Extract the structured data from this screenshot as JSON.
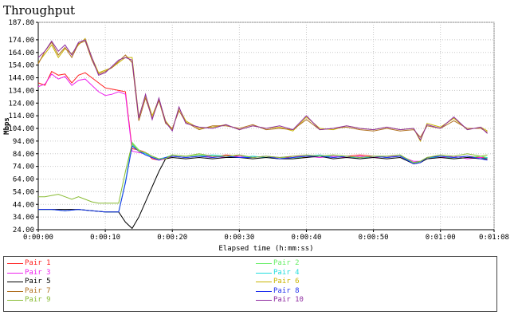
{
  "chart_data": {
    "type": "line",
    "title": "Throughput",
    "xlabel": "Elapsed time (h:mm:ss)",
    "ylabel": "Mbps",
    "xlim": [
      0,
      68
    ],
    "ylim": [
      24,
      187.8
    ],
    "grid": true,
    "legend_position": "bottom",
    "y_ticks": [
      "24.00",
      "34.00",
      "44.00",
      "54.00",
      "64.00",
      "74.00",
      "84.00",
      "94.00",
      "104.00",
      "114.00",
      "124.00",
      "134.00",
      "144.00",
      "154.00",
      "164.00",
      "174.00",
      "187.80"
    ],
    "y_tick_values": [
      24,
      34,
      44,
      54,
      64,
      74,
      84,
      94,
      104,
      114,
      124,
      134,
      144,
      154,
      164,
      174,
      187.8
    ],
    "x_ticks": [
      "0:00:00",
      "0:00:10",
      "0:00:20",
      "0:00:30",
      "0:00:40",
      "0:00:50",
      "0:01:00",
      "0:01:08"
    ],
    "x_tick_values": [
      0,
      10,
      20,
      30,
      40,
      50,
      60,
      68
    ],
    "series": [
      {
        "name": "Pair 1",
        "color": "#ff2020",
        "x": [
          0,
          1,
          2,
          3,
          4,
          5,
          6,
          7,
          8,
          9,
          10,
          11,
          12,
          13,
          14,
          15,
          16,
          17,
          18,
          19,
          20,
          22,
          24,
          26,
          28,
          30,
          32,
          34,
          36,
          38,
          40,
          42,
          44,
          46,
          48,
          50,
          52,
          54,
          56,
          57,
          58,
          60,
          62,
          64,
          66,
          67
        ],
        "y": [
          140,
          138,
          149,
          146,
          147,
          140,
          146,
          148,
          144,
          140,
          136,
          135,
          134,
          133,
          88,
          87,
          85,
          80,
          79,
          80,
          82,
          81,
          82,
          81,
          83,
          82,
          81,
          82,
          80,
          82,
          81,
          83,
          81,
          82,
          83,
          82,
          81,
          82,
          77,
          78,
          81,
          82,
          81,
          82,
          81,
          81
        ]
      },
      {
        "name": "Pair 2",
        "color": "#66ee66",
        "x": [
          0,
          2,
          4,
          6,
          8,
          10,
          12,
          13,
          14,
          15,
          16,
          17,
          18,
          19,
          20,
          22,
          24,
          26,
          28,
          30,
          32,
          34,
          36,
          38,
          40,
          42,
          44,
          46,
          48,
          50,
          52,
          54,
          56,
          57,
          58,
          60,
          62,
          64,
          66,
          67
        ],
        "y": [
          40,
          40,
          39,
          40,
          39,
          38,
          38,
          62,
          93,
          87,
          84,
          82,
          79,
          81,
          83,
          82,
          83,
          82,
          82,
          83,
          81,
          82,
          81,
          80,
          82,
          81,
          83,
          82,
          81,
          82,
          82,
          83,
          76,
          78,
          81,
          82,
          80,
          81,
          82,
          81
        ]
      },
      {
        "name": "Pair 3",
        "color": "#ee22ee",
        "x": [
          0,
          1,
          2,
          3,
          4,
          5,
          6,
          7,
          8,
          9,
          10,
          11,
          12,
          13,
          14,
          15,
          16,
          17,
          18,
          19,
          20,
          22,
          24,
          26,
          28,
          30,
          32,
          34,
          36,
          38,
          40,
          42,
          44,
          46,
          48,
          50,
          52,
          54,
          56,
          57,
          58,
          60,
          62,
          64,
          66,
          67
        ],
        "y": [
          137,
          139,
          147,
          143,
          145,
          138,
          142,
          143,
          138,
          133,
          130,
          131,
          133,
          131,
          86,
          85,
          84,
          81,
          79,
          80,
          82,
          81,
          82,
          82,
          81,
          82,
          81,
          82,
          81,
          82,
          82,
          81,
          82,
          81,
          82,
          81,
          82,
          82,
          78,
          78,
          80,
          81,
          82,
          80,
          81,
          80
        ]
      },
      {
        "name": "Pair 4",
        "color": "#22dddd",
        "x": [
          0,
          2,
          4,
          6,
          8,
          10,
          12,
          13,
          14,
          15,
          16,
          17,
          18,
          19,
          20,
          22,
          24,
          26,
          28,
          30,
          32,
          34,
          36,
          38,
          40,
          42,
          44,
          46,
          48,
          50,
          52,
          54,
          56,
          57,
          58,
          60,
          62,
          64,
          66,
          67
        ],
        "y": [
          40,
          40,
          39,
          40,
          39,
          38,
          38,
          62,
          91,
          86,
          84,
          81,
          80,
          81,
          82,
          81,
          82,
          83,
          82,
          81,
          82,
          81,
          80,
          81,
          82,
          83,
          81,
          82,
          80,
          82,
          81,
          82,
          77,
          78,
          80,
          82,
          81,
          82,
          80,
          81
        ]
      },
      {
        "name": "Pair 5",
        "color": "#000000",
        "x": [
          0,
          2,
          4,
          6,
          8,
          10,
          12,
          13,
          14,
          15,
          16,
          17,
          18,
          19,
          20,
          22,
          24,
          26,
          28,
          30,
          32,
          34,
          36,
          38,
          40,
          42,
          44,
          46,
          48,
          50,
          52,
          54,
          56,
          57,
          58,
          60,
          62,
          64,
          66,
          67
        ],
        "y": [
          40,
          40,
          40,
          40,
          39,
          38,
          38,
          30,
          25,
          34,
          46,
          58,
          70,
          80,
          81,
          80,
          81,
          80,
          81,
          81,
          80,
          81,
          80,
          80,
          81,
          82,
          80,
          81,
          80,
          81,
          80,
          81,
          76,
          77,
          80,
          81,
          80,
          81,
          80,
          80
        ]
      },
      {
        "name": "Pair 6",
        "color": "#c8b400",
        "x": [
          0,
          1,
          2,
          3,
          4,
          5,
          6,
          7,
          8,
          9,
          10,
          11,
          12,
          13,
          14,
          15,
          16,
          17,
          18,
          19,
          20,
          21,
          22,
          24,
          26,
          28,
          30,
          32,
          34,
          36,
          38,
          40,
          42,
          44,
          46,
          48,
          50,
          52,
          54,
          56,
          57,
          58,
          60,
          62,
          64,
          66,
          67
        ],
        "y": [
          156,
          163,
          170,
          160,
          167,
          163,
          170,
          175,
          160,
          148,
          150,
          152,
          156,
          160,
          160,
          113,
          130,
          114,
          127,
          110,
          103,
          120,
          110,
          104,
          105,
          107,
          103,
          106,
          104,
          105,
          102,
          113,
          104,
          103,
          106,
          104,
          103,
          105,
          103,
          104,
          94,
          108,
          105,
          112,
          103,
          105,
          102
        ]
      },
      {
        "name": "Pair 7",
        "color": "#b07020",
        "x": [
          0,
          1,
          2,
          3,
          4,
          5,
          6,
          7,
          8,
          9,
          10,
          11,
          12,
          13,
          14,
          15,
          16,
          17,
          18,
          19,
          20,
          21,
          22,
          24,
          26,
          28,
          30,
          32,
          34,
          36,
          38,
          40,
          42,
          44,
          46,
          48,
          50,
          52,
          54,
          56,
          57,
          58,
          60,
          62,
          64,
          66,
          67
        ],
        "y": [
          155,
          165,
          172,
          162,
          168,
          160,
          171,
          173,
          158,
          147,
          149,
          152,
          157,
          162,
          156,
          110,
          128,
          112,
          126,
          108,
          104,
          118,
          109,
          103,
          106,
          106,
          104,
          107,
          103,
          104,
          103,
          111,
          103,
          104,
          105,
          103,
          102,
          104,
          102,
          103,
          97,
          106,
          104,
          110,
          104,
          104,
          101
        ]
      },
      {
        "name": "Pair 8",
        "color": "#2030ee",
        "x": [
          0,
          2,
          4,
          6,
          8,
          10,
          12,
          13,
          14,
          15,
          16,
          17,
          18,
          19,
          20,
          22,
          24,
          26,
          28,
          30,
          32,
          34,
          36,
          38,
          40,
          42,
          44,
          46,
          48,
          50,
          52,
          54,
          56,
          57,
          58,
          60,
          62,
          64,
          66,
          67
        ],
        "y": [
          40,
          40,
          39,
          40,
          39,
          38,
          38,
          61,
          90,
          86,
          83,
          81,
          79,
          81,
          82,
          81,
          82,
          81,
          82,
          81,
          81,
          82,
          80,
          81,
          82,
          82,
          81,
          82,
          81,
          82,
          81,
          82,
          76,
          77,
          81,
          82,
          81,
          82,
          80,
          79
        ]
      },
      {
        "name": "Pair 9",
        "color": "#88bb33",
        "x": [
          0,
          1,
          2,
          3,
          4,
          5,
          6,
          7,
          8,
          9,
          10,
          11,
          12,
          13,
          14,
          15,
          16,
          17,
          18,
          19,
          20,
          22,
          24,
          26,
          28,
          30,
          32,
          34,
          36,
          38,
          40,
          42,
          44,
          46,
          48,
          50,
          52,
          54,
          56,
          57,
          58,
          60,
          62,
          64,
          66,
          67
        ],
        "y": [
          50,
          50,
          51,
          52,
          50,
          48,
          50,
          48,
          46,
          45,
          45,
          45,
          45,
          70,
          92,
          86,
          85,
          82,
          80,
          80,
          83,
          82,
          84,
          82,
          82,
          83,
          81,
          82,
          81,
          82,
          83,
          82,
          83,
          82,
          81,
          82,
          82,
          83,
          77,
          78,
          81,
          83,
          82,
          84,
          82,
          83
        ]
      },
      {
        "name": "Pair 10",
        "color": "#8e2ba0",
        "x": [
          0,
          1,
          2,
          3,
          4,
          5,
          6,
          7,
          8,
          9,
          10,
          11,
          12,
          13,
          14,
          15,
          16,
          17,
          18,
          19,
          20,
          21,
          22,
          24,
          26,
          28,
          30,
          32,
          34,
          36,
          38,
          40,
          42,
          44,
          46,
          48,
          50,
          52,
          54,
          56,
          57,
          58,
          60,
          62,
          64,
          66,
          67
        ],
        "y": [
          160,
          165,
          173,
          165,
          170,
          162,
          172,
          174,
          160,
          146,
          148,
          153,
          158,
          160,
          158,
          112,
          131,
          111,
          128,
          109,
          102,
          121,
          108,
          105,
          104,
          107,
          103,
          106,
          104,
          106,
          103,
          114,
          103,
          104,
          106,
          104,
          103,
          105,
          103,
          104,
          95,
          107,
          104,
          113,
          103,
          105,
          100
        ]
      }
    ]
  }
}
